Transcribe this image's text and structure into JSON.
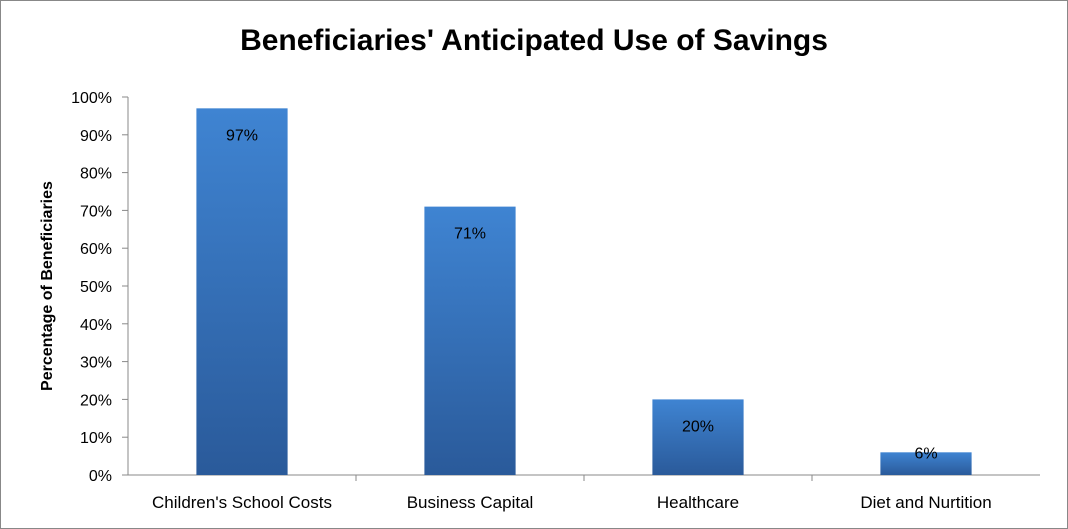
{
  "chart_data": {
    "type": "bar",
    "title": "Beneficiaries' Anticipated Use of Savings",
    "xlabel": "",
    "ylabel": "Percentage of Beneficiaries",
    "categories": [
      "Children's School Costs",
      "Business Capital",
      "Healthcare",
      "Diet and Nurtition"
    ],
    "values": [
      97,
      71,
      20,
      6
    ],
    "value_labels": [
      "97%",
      "71%",
      "20%",
      "6%"
    ],
    "ylim": [
      0,
      100
    ],
    "yticks": [
      0,
      10,
      20,
      30,
      40,
      50,
      60,
      70,
      80,
      90,
      100
    ],
    "ytick_labels": [
      "0%",
      "10%",
      "20%",
      "30%",
      "40%",
      "50%",
      "60%",
      "70%",
      "80%",
      "90%",
      "100%"
    ],
    "grid": false,
    "legend": "none",
    "colors": {
      "bar_top": "#3f84d2",
      "bar_bottom": "#2a5a9a",
      "axis": "#888888"
    }
  }
}
